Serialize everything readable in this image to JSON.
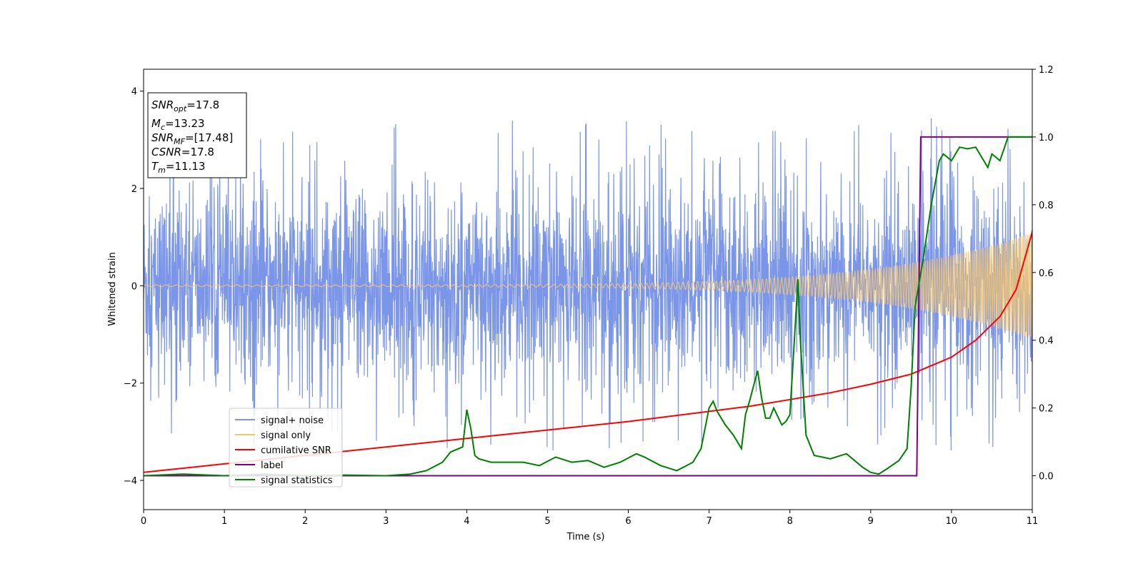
{
  "chart_data": {
    "type": "line",
    "xlabel": "Time (s)",
    "ylabel": "Whitened strain",
    "xlim": [
      0,
      11
    ],
    "ylim_left": [
      -4.6,
      4.45
    ],
    "ylim_right": [
      -0.1,
      1.2
    ],
    "x_ticks": [
      "0",
      "1",
      "2",
      "3",
      "4",
      "5",
      "6",
      "7",
      "8",
      "9",
      "10",
      "11"
    ],
    "y_ticks_left": [
      "−4",
      "−2",
      "0",
      "2",
      "4"
    ],
    "y_ticks_right": [
      "0.0",
      "0.2",
      "0.4",
      "0.6",
      "0.8",
      "1.0",
      "1.2"
    ],
    "grid": false,
    "legend_position": "lower-left",
    "annotation": {
      "snr_opt": {
        "base": "SNR",
        "sub": "opt",
        "value": "=17.8"
      },
      "mc": {
        "base": "M",
        "sub": "c",
        "value": "=13.23"
      },
      "snr_mf": {
        "base": "SNR",
        "sub": "MF",
        "value": "=[17.48]"
      },
      "csnr": {
        "base": "CSNR",
        "value": "=17.8"
      },
      "tm": {
        "base": "T",
        "sub": "m",
        "value": "=11.13"
      }
    },
    "series": [
      {
        "name": "signal+ noise",
        "axis": "left",
        "color": "#7b96e8",
        "kind": "noise",
        "description": "dense noise, roughly -2.2 to 2.6 with spikes up to about 4"
      },
      {
        "name": "signal only",
        "axis": "left",
        "color": "#f5c56e",
        "kind": "chirp",
        "amplitude_start": 0.02,
        "amplitude_end": 1.1,
        "frequency_start_hz": 8,
        "frequency_end_hz": 45
      },
      {
        "name": "cumilative SNR",
        "axis": "right",
        "color": "#ff0000",
        "x": [
          0,
          1,
          2,
          3,
          4,
          5,
          6,
          7,
          7.5,
          8,
          8.5,
          9,
          9.5,
          10,
          10.3,
          10.6,
          10.8,
          11
        ],
        "y": [
          0.01,
          0.035,
          0.06,
          0.085,
          0.11,
          0.135,
          0.16,
          0.19,
          0.205,
          0.225,
          0.245,
          0.27,
          0.3,
          0.35,
          0.4,
          0.47,
          0.55,
          0.72
        ]
      },
      {
        "name": "label",
        "axis": "right",
        "color": "#800080",
        "x": [
          0,
          9.57,
          9.62,
          11
        ],
        "y": [
          0,
          0,
          1,
          1
        ]
      },
      {
        "name": "signal statistics",
        "axis": "right",
        "color": "#008000",
        "x": [
          0,
          0.5,
          1,
          1.5,
          2,
          2.5,
          3,
          3.3,
          3.5,
          3.7,
          3.8,
          3.95,
          4.0,
          4.05,
          4.1,
          4.15,
          4.3,
          4.5,
          4.7,
          4.9,
          5.1,
          5.3,
          5.5,
          5.7,
          5.9,
          6.1,
          6.2,
          6.4,
          6.6,
          6.8,
          6.9,
          7.0,
          7.05,
          7.1,
          7.2,
          7.3,
          7.4,
          7.45,
          7.5,
          7.6,
          7.65,
          7.7,
          7.75,
          7.8,
          7.9,
          7.95,
          8.0,
          8.05,
          8.1,
          8.13,
          8.2,
          8.3,
          8.4,
          8.5,
          8.7,
          8.9,
          9.0,
          9.1,
          9.2,
          9.35,
          9.45,
          9.5,
          9.55,
          9.65,
          9.75,
          9.85,
          9.9,
          10.0,
          10.1,
          10.2,
          10.3,
          10.45,
          10.5,
          10.6,
          10.7,
          10.8,
          11
        ],
        "y": [
          0.0,
          0.005,
          0.0,
          0.005,
          0.0,
          0.002,
          0.0,
          0.005,
          0.015,
          0.04,
          0.07,
          0.085,
          0.195,
          0.14,
          0.06,
          0.05,
          0.04,
          0.04,
          0.04,
          0.03,
          0.055,
          0.04,
          0.045,
          0.025,
          0.04,
          0.065,
          0.055,
          0.03,
          0.015,
          0.04,
          0.08,
          0.2,
          0.22,
          0.19,
          0.15,
          0.12,
          0.08,
          0.18,
          0.22,
          0.31,
          0.23,
          0.17,
          0.17,
          0.2,
          0.15,
          0.16,
          0.18,
          0.38,
          0.58,
          0.4,
          0.12,
          0.06,
          0.055,
          0.05,
          0.065,
          0.025,
          0.01,
          0.005,
          0.02,
          0.045,
          0.08,
          0.26,
          0.5,
          0.64,
          0.8,
          0.93,
          0.95,
          0.93,
          0.97,
          0.965,
          0.97,
          0.91,
          0.95,
          0.93,
          1.0,
          1.0,
          1.0
        ]
      }
    ]
  }
}
